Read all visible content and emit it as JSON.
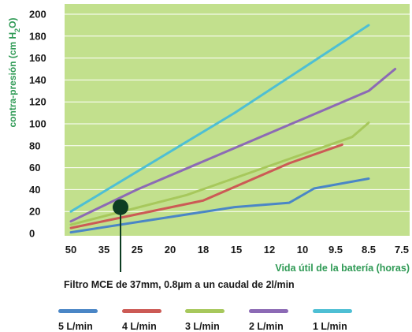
{
  "chart_data": {
    "type": "line",
    "ylabel_main": "contra-presión  (cm H",
    "ylabel_sub": "2",
    "ylabel_end": "O)",
    "xlabel": "Vida útil de la batería (horas)",
    "caption": "Filtro MCE de 37mm, 0.8µm a un caudal de 2l/min",
    "x_ticks": [
      "50",
      "35",
      "25",
      "20",
      "18",
      "15",
      "12",
      "10",
      "9.5",
      "8.5",
      "7.5"
    ],
    "y_ticks": [
      "0",
      "20",
      "40",
      "60",
      "80",
      "100",
      "120",
      "140",
      "160",
      "180",
      "200"
    ],
    "ylim": [
      0,
      200
    ],
    "grid": true,
    "marker_point": {
      "x": 1.5,
      "y": 24
    },
    "series": [
      {
        "name": "5 L/min",
        "color": "#4a86c6",
        "points": [
          [
            0,
            1
          ],
          [
            4.95,
            24
          ],
          [
            6.6,
            28
          ],
          [
            7.35,
            41
          ],
          [
            9,
            50
          ]
        ]
      },
      {
        "name": "4 L/min",
        "color": "#cc5a55",
        "points": [
          [
            0,
            5
          ],
          [
            4,
            30
          ],
          [
            6.6,
            64
          ],
          [
            8.2,
            81
          ]
        ]
      },
      {
        "name": "3 L/min",
        "color": "#a7c85c",
        "points": [
          [
            0,
            8
          ],
          [
            3.5,
            35
          ],
          [
            6.6,
            68
          ],
          [
            8.5,
            88
          ],
          [
            9,
            101
          ]
        ]
      },
      {
        "name": "2 L/min",
        "color": "#8c6ab5",
        "points": [
          [
            0,
            11
          ],
          [
            2,
            40
          ],
          [
            9,
            130
          ],
          [
            9.8,
            150
          ]
        ]
      },
      {
        "name": "1 L/min",
        "color": "#4ebfd4",
        "points": [
          [
            0,
            20
          ],
          [
            4.95,
            110
          ],
          [
            9,
            190
          ]
        ]
      }
    ]
  }
}
